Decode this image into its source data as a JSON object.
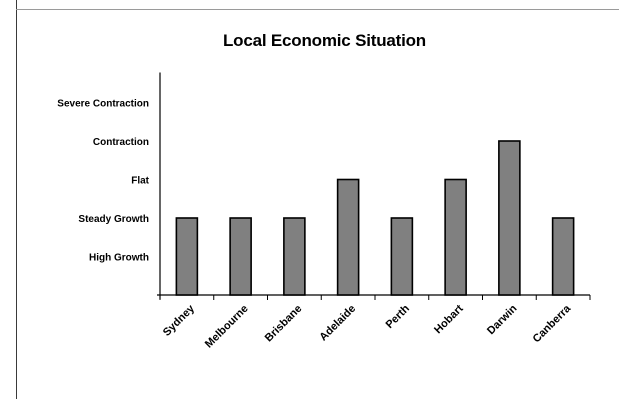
{
  "chart_data": {
    "type": "bar",
    "title": "Local Economic Situation",
    "xlabel": "",
    "ylabel": "",
    "categories": [
      "Sydney",
      "Melbourne",
      "Brisbane",
      "Adelaide",
      "Perth",
      "Hobart",
      "Darwin",
      "Canberra"
    ],
    "y_tick_labels": [
      "High Growth",
      "Steady Growth",
      "Flat",
      "Contraction",
      "Severe Contraction"
    ],
    "values": [
      2,
      2,
      2,
      3,
      2,
      3,
      4,
      2
    ],
    "ylim": [
      0,
      5
    ],
    "bar_color": "#808080",
    "grid": false,
    "legend": "none"
  }
}
